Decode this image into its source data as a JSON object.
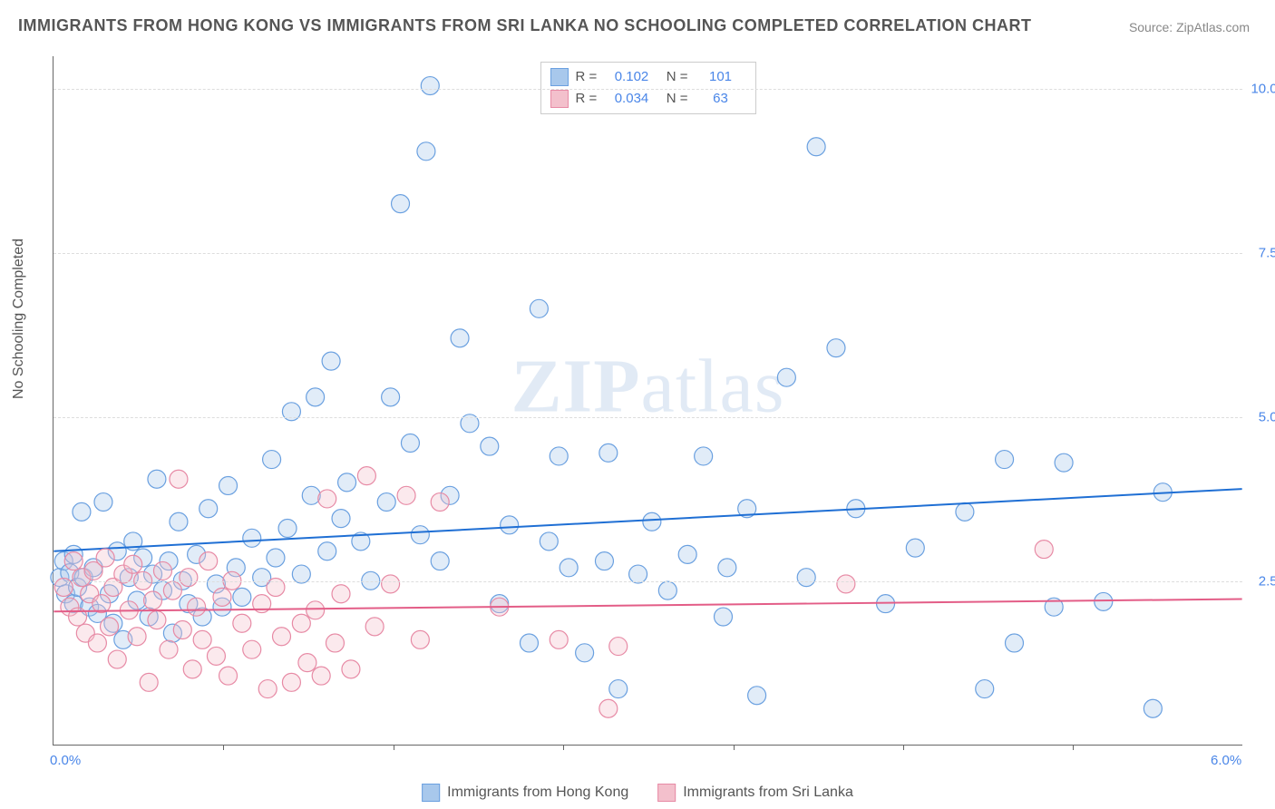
{
  "title": "IMMIGRANTS FROM HONG KONG VS IMMIGRANTS FROM SRI LANKA NO SCHOOLING COMPLETED CORRELATION CHART",
  "source_prefix": "Source: ",
  "source_name": "ZipAtlas.com",
  "y_axis_label": "No Schooling Completed",
  "watermark_a": "ZIP",
  "watermark_b": "atlas",
  "chart": {
    "type": "scatter",
    "xlim": [
      0.0,
      6.0
    ],
    "ylim": [
      0.0,
      10.5
    ],
    "x_ticks": [
      0.0,
      6.0
    ],
    "x_tick_labels": [
      "0.0%",
      "6.0%"
    ],
    "x_minor_tick_step": 0.857,
    "y_ticks": [
      2.5,
      5.0,
      7.5,
      10.0
    ],
    "y_tick_labels": [
      "2.5%",
      "5.0%",
      "7.5%",
      "10.0%"
    ],
    "grid_color": "#dddddd",
    "background_color": "#ffffff",
    "marker_radius": 10,
    "marker_fill_opacity": 0.35,
    "marker_stroke_width": 1.2,
    "line_width": 2,
    "series": [
      {
        "name": "Immigrants from Hong Kong",
        "color_fill": "#a8c8ec",
        "color_stroke": "#6aa0e0",
        "line_color": "#1f6fd4",
        "r": 0.102,
        "n": 101,
        "trend": {
          "y_at_xmin": 2.95,
          "y_at_xmax": 3.9
        },
        "points": [
          [
            0.03,
            2.55
          ],
          [
            0.05,
            2.8
          ],
          [
            0.06,
            2.3
          ],
          [
            0.08,
            2.62
          ],
          [
            0.1,
            2.9
          ],
          [
            0.1,
            2.15
          ],
          [
            0.12,
            2.4
          ],
          [
            0.14,
            3.55
          ],
          [
            0.15,
            2.55
          ],
          [
            0.18,
            2.1
          ],
          [
            0.2,
            2.7
          ],
          [
            0.22,
            2.0
          ],
          [
            0.25,
            3.7
          ],
          [
            0.28,
            2.3
          ],
          [
            0.3,
            1.85
          ],
          [
            0.32,
            2.95
          ],
          [
            0.35,
            1.6
          ],
          [
            0.38,
            2.55
          ],
          [
            0.4,
            3.1
          ],
          [
            0.42,
            2.2
          ],
          [
            0.45,
            2.85
          ],
          [
            0.48,
            1.95
          ],
          [
            0.5,
            2.6
          ],
          [
            0.52,
            4.05
          ],
          [
            0.55,
            2.35
          ],
          [
            0.58,
            2.8
          ],
          [
            0.6,
            1.7
          ],
          [
            0.63,
            3.4
          ],
          [
            0.65,
            2.5
          ],
          [
            0.68,
            2.15
          ],
          [
            0.72,
            2.9
          ],
          [
            0.75,
            1.95
          ],
          [
            0.78,
            3.6
          ],
          [
            0.82,
            2.45
          ],
          [
            0.85,
            2.1
          ],
          [
            0.88,
            3.95
          ],
          [
            0.92,
            2.7
          ],
          [
            0.95,
            2.25
          ],
          [
            1.0,
            3.15
          ],
          [
            1.05,
            2.55
          ],
          [
            1.1,
            4.35
          ],
          [
            1.12,
            2.85
          ],
          [
            1.18,
            3.3
          ],
          [
            1.2,
            5.08
          ],
          [
            1.25,
            2.6
          ],
          [
            1.3,
            3.8
          ],
          [
            1.32,
            5.3
          ],
          [
            1.38,
            2.95
          ],
          [
            1.4,
            5.85
          ],
          [
            1.45,
            3.45
          ],
          [
            1.48,
            4.0
          ],
          [
            1.55,
            3.1
          ],
          [
            1.6,
            2.5
          ],
          [
            1.68,
            3.7
          ],
          [
            1.7,
            5.3
          ],
          [
            1.75,
            8.25
          ],
          [
            1.8,
            4.6
          ],
          [
            1.85,
            3.2
          ],
          [
            1.88,
            9.05
          ],
          [
            1.9,
            10.05
          ],
          [
            1.95,
            2.8
          ],
          [
            2.0,
            3.8
          ],
          [
            2.05,
            6.2
          ],
          [
            2.1,
            4.9
          ],
          [
            2.2,
            4.55
          ],
          [
            2.25,
            2.15
          ],
          [
            2.3,
            3.35
          ],
          [
            2.4,
            1.55
          ],
          [
            2.45,
            6.65
          ],
          [
            2.5,
            3.1
          ],
          [
            2.55,
            4.4
          ],
          [
            2.6,
            2.7
          ],
          [
            2.68,
            1.4
          ],
          [
            2.78,
            2.8
          ],
          [
            2.8,
            4.45
          ],
          [
            2.85,
            0.85
          ],
          [
            2.95,
            2.6
          ],
          [
            3.02,
            3.4
          ],
          [
            3.1,
            2.35
          ],
          [
            3.2,
            2.9
          ],
          [
            3.28,
            4.4
          ],
          [
            3.38,
            1.95
          ],
          [
            3.4,
            2.7
          ],
          [
            3.5,
            3.6
          ],
          [
            3.55,
            0.75
          ],
          [
            3.7,
            5.6
          ],
          [
            3.8,
            2.55
          ],
          [
            3.85,
            9.12
          ],
          [
            3.95,
            6.05
          ],
          [
            4.05,
            3.6
          ],
          [
            4.2,
            2.15
          ],
          [
            4.35,
            3.0
          ],
          [
            4.6,
            3.55
          ],
          [
            4.7,
            0.85
          ],
          [
            4.8,
            4.35
          ],
          [
            4.85,
            1.55
          ],
          [
            5.05,
            2.1
          ],
          [
            5.1,
            4.3
          ],
          [
            5.3,
            2.18
          ],
          [
            5.55,
            0.55
          ],
          [
            5.6,
            3.85
          ]
        ]
      },
      {
        "name": "Immigrants from Sri Lanka",
        "color_fill": "#f3c0cc",
        "color_stroke": "#e78aa5",
        "line_color": "#e35d87",
        "r": 0.034,
        "n": 63,
        "trend": {
          "y_at_xmin": 2.03,
          "y_at_xmax": 2.22
        },
        "points": [
          [
            0.05,
            2.4
          ],
          [
            0.08,
            2.1
          ],
          [
            0.1,
            2.8
          ],
          [
            0.12,
            1.95
          ],
          [
            0.14,
            2.55
          ],
          [
            0.16,
            1.7
          ],
          [
            0.18,
            2.3
          ],
          [
            0.2,
            2.65
          ],
          [
            0.22,
            1.55
          ],
          [
            0.24,
            2.15
          ],
          [
            0.26,
            2.85
          ],
          [
            0.28,
            1.8
          ],
          [
            0.3,
            2.4
          ],
          [
            0.32,
            1.3
          ],
          [
            0.35,
            2.6
          ],
          [
            0.38,
            2.05
          ],
          [
            0.4,
            2.75
          ],
          [
            0.42,
            1.65
          ],
          [
            0.45,
            2.5
          ],
          [
            0.48,
            0.95
          ],
          [
            0.5,
            2.2
          ],
          [
            0.52,
            1.9
          ],
          [
            0.55,
            2.65
          ],
          [
            0.58,
            1.45
          ],
          [
            0.6,
            2.35
          ],
          [
            0.63,
            4.05
          ],
          [
            0.65,
            1.75
          ],
          [
            0.68,
            2.55
          ],
          [
            0.7,
            1.15
          ],
          [
            0.72,
            2.1
          ],
          [
            0.75,
            1.6
          ],
          [
            0.78,
            2.8
          ],
          [
            0.82,
            1.35
          ],
          [
            0.85,
            2.25
          ],
          [
            0.88,
            1.05
          ],
          [
            0.9,
            2.5
          ],
          [
            0.95,
            1.85
          ],
          [
            1.0,
            1.45
          ],
          [
            1.05,
            2.15
          ],
          [
            1.08,
            0.85
          ],
          [
            1.12,
            2.4
          ],
          [
            1.15,
            1.65
          ],
          [
            1.2,
            0.95
          ],
          [
            1.25,
            1.85
          ],
          [
            1.28,
            1.25
          ],
          [
            1.32,
            2.05
          ],
          [
            1.35,
            1.05
          ],
          [
            1.38,
            3.75
          ],
          [
            1.42,
            1.55
          ],
          [
            1.45,
            2.3
          ],
          [
            1.5,
            1.15
          ],
          [
            1.58,
            4.1
          ],
          [
            1.62,
            1.8
          ],
          [
            1.7,
            2.45
          ],
          [
            1.78,
            3.8
          ],
          [
            1.85,
            1.6
          ],
          [
            1.95,
            3.7
          ],
          [
            2.25,
            2.1
          ],
          [
            2.55,
            1.6
          ],
          [
            2.8,
            0.55
          ],
          [
            2.85,
            1.5
          ],
          [
            4.0,
            2.45
          ],
          [
            5.0,
            2.98
          ]
        ]
      }
    ]
  },
  "legend_bottom": [
    "Immigrants from Hong Kong",
    "Immigrants from Sri Lanka"
  ]
}
